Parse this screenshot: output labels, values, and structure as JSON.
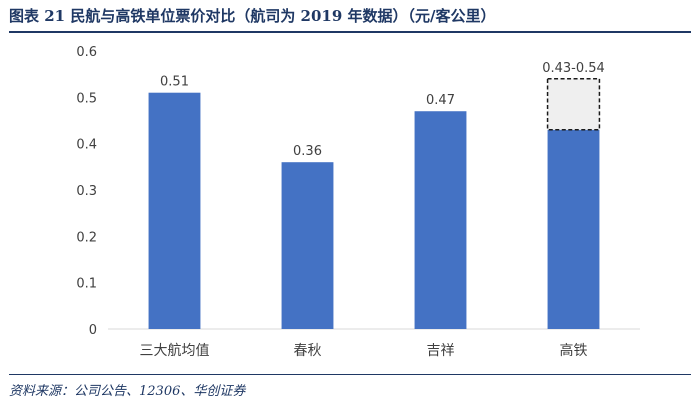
{
  "title": "图表 21   民航与高铁单位票价对比（航司为 2019 年数据）（元/客公里）",
  "source": "资料来源：公司公告、12306、华创证券",
  "colors": {
    "bar": "#4472c4",
    "range_fill": "#efefef",
    "range_border": "#1a1a1a",
    "text": "#404040",
    "axis": "#d9d9d9",
    "brand": "#1f3864"
  },
  "chart_data": {
    "type": "bar",
    "categories": [
      "三大航均值",
      "春秋",
      "吉祥",
      "高铁"
    ],
    "values": [
      0.51,
      0.36,
      0.47,
      0.43
    ],
    "range": {
      "category": "高铁",
      "low": 0.43,
      "high": 0.54,
      "style": "dashed-box"
    },
    "data_labels": [
      "0.51",
      "0.36",
      "0.47",
      "0.43-0.54"
    ],
    "yticks": [
      "0",
      "0.1",
      "0.2",
      "0.3",
      "0.4",
      "0.5",
      "0.6"
    ],
    "ylim": [
      0,
      0.6
    ],
    "grid": false,
    "legend": false
  }
}
